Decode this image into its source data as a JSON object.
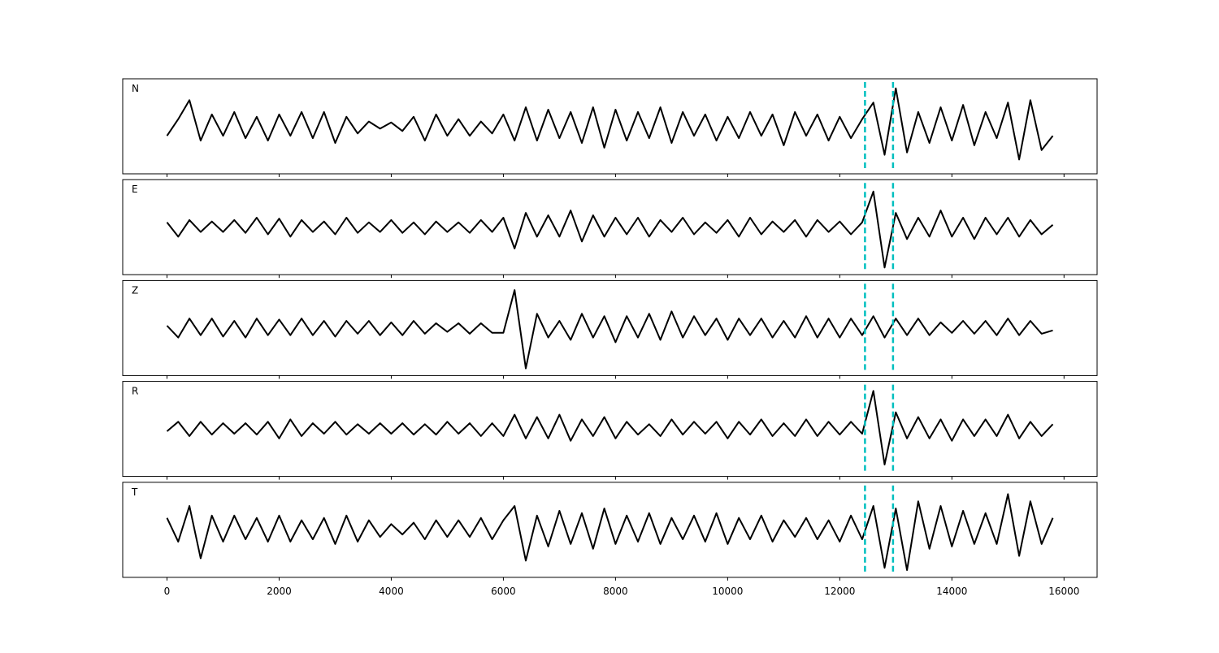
{
  "chart_data": {
    "type": "line",
    "x": [
      0,
      200,
      400,
      600,
      800,
      1000,
      1200,
      1400,
      1600,
      1800,
      2000,
      2200,
      2400,
      2600,
      2800,
      3000,
      3200,
      3400,
      3600,
      3800,
      4000,
      4200,
      4400,
      4600,
      4800,
      5000,
      5200,
      5400,
      5600,
      5800,
      6000,
      6200,
      6400,
      6600,
      6800,
      7000,
      7200,
      7400,
      7600,
      7800,
      8000,
      8200,
      8400,
      8600,
      8800,
      9000,
      9200,
      9400,
      9600,
      9800,
      10000,
      10200,
      10400,
      10600,
      10800,
      11000,
      11200,
      11400,
      11600,
      11800,
      12000,
      12200,
      12400,
      12600,
      12800,
      13000,
      13200,
      13400,
      13600,
      13800,
      14000,
      14200,
      14400,
      14600,
      14800,
      15000,
      15200,
      15400,
      15600,
      15800
    ],
    "series": [
      {
        "name": "N",
        "color": "#000000",
        "values": [
          -0.2,
          0.15,
          0.55,
          -0.3,
          0.25,
          -0.2,
          0.3,
          -0.25,
          0.2,
          -0.3,
          0.25,
          -0.2,
          0.3,
          -0.25,
          0.3,
          -0.35,
          0.2,
          -0.15,
          0.1,
          -0.05,
          0.08,
          -0.1,
          0.2,
          -0.3,
          0.25,
          -0.2,
          0.15,
          -0.2,
          0.1,
          -0.15,
          0.25,
          -0.3,
          0.4,
          -0.3,
          0.35,
          -0.25,
          0.3,
          -0.35,
          0.4,
          -0.45,
          0.35,
          -0.3,
          0.3,
          -0.25,
          0.4,
          -0.35,
          0.3,
          -0.2,
          0.25,
          -0.3,
          0.2,
          -0.25,
          0.3,
          -0.2,
          0.25,
          -0.4,
          0.3,
          -0.2,
          0.25,
          -0.3,
          0.2,
          -0.25,
          0.15,
          0.5,
          -0.6,
          0.8,
          -0.55,
          0.3,
          -0.35,
          0.4,
          -0.3,
          0.45,
          -0.4,
          0.3,
          -0.25,
          0.5,
          -0.7,
          0.55,
          -0.5,
          -0.2
        ]
      },
      {
        "name": "E",
        "color": "#000000",
        "values": [
          0.1,
          -0.2,
          0.15,
          -0.1,
          0.12,
          -0.1,
          0.15,
          -0.12,
          0.2,
          -0.15,
          0.18,
          -0.2,
          0.15,
          -0.1,
          0.12,
          -0.15,
          0.2,
          -0.12,
          0.1,
          -0.1,
          0.15,
          -0.12,
          0.1,
          -0.15,
          0.12,
          -0.1,
          0.1,
          -0.12,
          0.15,
          -0.1,
          0.2,
          -0.45,
          0.3,
          -0.2,
          0.25,
          -0.2,
          0.35,
          -0.3,
          0.25,
          -0.2,
          0.2,
          -0.15,
          0.2,
          -0.2,
          0.15,
          -0.1,
          0.2,
          -0.15,
          0.1,
          -0.12,
          0.15,
          -0.2,
          0.2,
          -0.15,
          0.12,
          -0.1,
          0.15,
          -0.2,
          0.15,
          -0.1,
          0.12,
          -0.15,
          0.1,
          0.75,
          -0.85,
          0.3,
          -0.25,
          0.2,
          -0.2,
          0.35,
          -0.2,
          0.2,
          -0.25,
          0.2,
          -0.15,
          0.2,
          -0.2,
          0.15,
          -0.15,
          0.05
        ]
      },
      {
        "name": "Z",
        "color": "#000000",
        "values": [
          0.05,
          -0.2,
          0.2,
          -0.15,
          0.2,
          -0.18,
          0.15,
          -0.2,
          0.2,
          -0.15,
          0.18,
          -0.15,
          0.2,
          -0.15,
          0.15,
          -0.18,
          0.15,
          -0.12,
          0.15,
          -0.15,
          0.12,
          -0.15,
          0.15,
          -0.12,
          0.1,
          -0.08,
          0.1,
          -0.12,
          0.1,
          -0.1,
          -0.1,
          0.8,
          -0.85,
          0.3,
          -0.2,
          0.15,
          -0.25,
          0.3,
          -0.2,
          0.25,
          -0.3,
          0.25,
          -0.2,
          0.3,
          -0.25,
          0.35,
          -0.2,
          0.25,
          -0.15,
          0.2,
          -0.25,
          0.2,
          -0.15,
          0.2,
          -0.2,
          0.15,
          -0.2,
          0.25,
          -0.2,
          0.2,
          -0.2,
          0.2,
          -0.15,
          0.25,
          -0.2,
          0.2,
          -0.15,
          0.2,
          -0.15,
          0.12,
          -0.1,
          0.15,
          -0.12,
          0.15,
          -0.15,
          0.2,
          -0.15,
          0.15,
          -0.12,
          -0.05
        ]
      },
      {
        "name": "R",
        "color": "#000000",
        "values": [
          -0.05,
          0.15,
          -0.15,
          0.15,
          -0.12,
          0.12,
          -0.1,
          0.12,
          -0.12,
          0.15,
          -0.2,
          0.2,
          -0.15,
          0.12,
          -0.1,
          0.15,
          -0.12,
          0.1,
          -0.1,
          0.12,
          -0.1,
          0.12,
          -0.12,
          0.1,
          -0.12,
          0.15,
          -0.1,
          0.12,
          -0.15,
          0.12,
          -0.15,
          0.3,
          -0.2,
          0.25,
          -0.2,
          0.3,
          -0.25,
          0.2,
          -0.15,
          0.25,
          -0.2,
          0.15,
          -0.12,
          0.1,
          -0.15,
          0.2,
          -0.12,
          0.15,
          -0.1,
          0.15,
          -0.2,
          0.15,
          -0.12,
          0.2,
          -0.15,
          0.12,
          -0.15,
          0.2,
          -0.15,
          0.15,
          -0.12,
          0.15,
          -0.1,
          0.8,
          -0.75,
          0.35,
          -0.2,
          0.25,
          -0.2,
          0.2,
          -0.25,
          0.2,
          -0.15,
          0.2,
          -0.15,
          0.3,
          -0.2,
          0.15,
          -0.15,
          0.1
        ]
      },
      {
        "name": "T",
        "color": "#000000",
        "values": [
          0.25,
          -0.25,
          0.5,
          -0.6,
          0.3,
          -0.25,
          0.3,
          -0.2,
          0.25,
          -0.25,
          0.3,
          -0.25,
          0.2,
          -0.2,
          0.25,
          -0.3,
          0.3,
          -0.25,
          0.2,
          -0.15,
          0.12,
          -0.1,
          0.15,
          -0.2,
          0.2,
          -0.15,
          0.2,
          -0.15,
          0.25,
          -0.2,
          0.2,
          0.5,
          -0.65,
          0.3,
          -0.35,
          0.4,
          -0.3,
          0.35,
          -0.4,
          0.45,
          -0.3,
          0.3,
          -0.25,
          0.35,
          -0.3,
          0.25,
          -0.2,
          0.3,
          -0.25,
          0.35,
          -0.3,
          0.25,
          -0.2,
          0.3,
          -0.25,
          0.2,
          -0.15,
          0.25,
          -0.2,
          0.2,
          -0.25,
          0.3,
          -0.2,
          0.5,
          -0.8,
          0.45,
          -0.85,
          0.6,
          -0.4,
          0.5,
          -0.35,
          0.4,
          -0.3,
          0.35,
          -0.3,
          0.75,
          -0.55,
          0.6,
          -0.3,
          0.25
        ]
      }
    ],
    "xlim": [
      -790,
      16590
    ],
    "xticks": [
      0,
      2000,
      4000,
      6000,
      8000,
      10000,
      12000,
      14000,
      16000
    ],
    "ylim": [
      -1,
      1
    ],
    "vlines": [
      12450,
      12950
    ],
    "vline_color": "#00bfbf"
  }
}
